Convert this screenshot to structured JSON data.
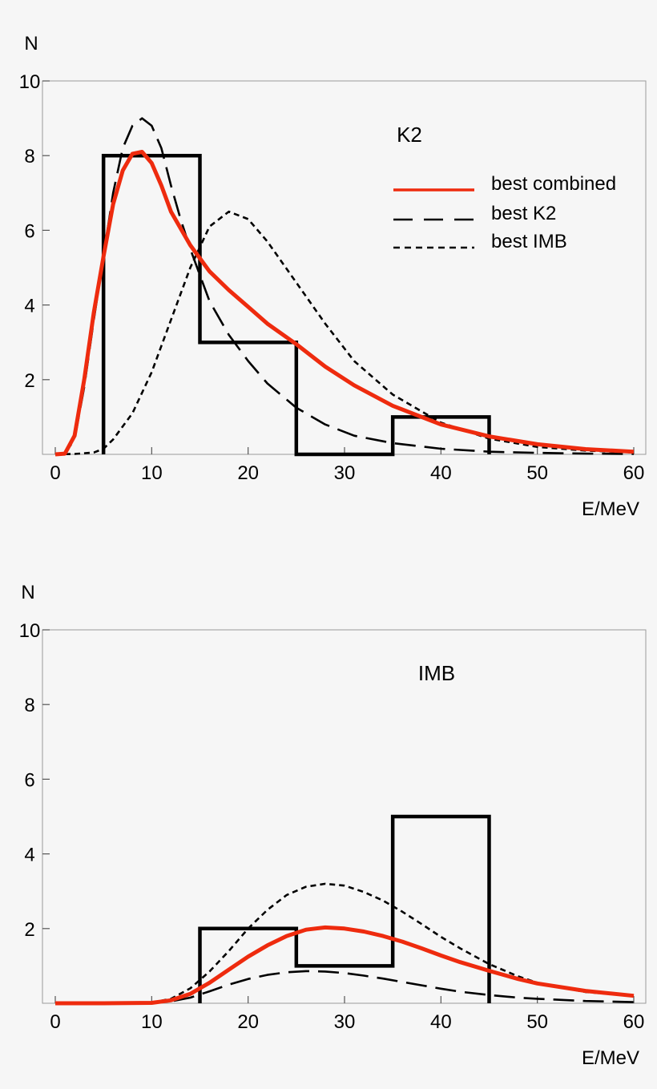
{
  "chart_data": [
    {
      "type": "line",
      "title": "K2",
      "ylabel": "N",
      "xlabel": "E/MeV",
      "xlim": [
        0,
        61
      ],
      "ylim": [
        0,
        10
      ],
      "xticks": [
        0,
        10,
        20,
        30,
        40,
        50,
        60
      ],
      "yticks": [
        2,
        4,
        6,
        8,
        10
      ],
      "histogram": {
        "name": "data",
        "bins": [
          [
            5,
            15,
            8
          ],
          [
            15,
            25,
            3
          ],
          [
            25,
            35,
            0
          ],
          [
            35,
            45,
            1
          ]
        ]
      },
      "series": [
        {
          "name": "best combined",
          "style": "solid-red",
          "x": [
            0,
            1,
            2,
            3,
            4,
            5,
            6,
            7,
            8,
            9,
            10,
            11,
            12,
            14,
            16,
            18,
            20,
            22,
            25,
            28,
            31,
            35,
            40,
            45,
            50,
            55,
            60
          ],
          "y": [
            0,
            0.02,
            0.5,
            2.0,
            3.8,
            5.3,
            6.7,
            7.6,
            8.05,
            8.1,
            7.8,
            7.2,
            6.5,
            5.6,
            4.9,
            4.4,
            3.95,
            3.5,
            2.95,
            2.35,
            1.85,
            1.3,
            0.8,
            0.48,
            0.27,
            0.14,
            0.07
          ]
        },
        {
          "name": "best K2",
          "style": "long-dash",
          "x": [
            0,
            1,
            2,
            3,
            4,
            5,
            6,
            7,
            8,
            9,
            10,
            11,
            12,
            13,
            14,
            15,
            16,
            18,
            20,
            22,
            25,
            28,
            31,
            35,
            40,
            45,
            50,
            55,
            60
          ],
          "y": [
            0,
            0.02,
            0.4,
            1.8,
            3.6,
            5.3,
            7.0,
            8.2,
            8.8,
            9.0,
            8.8,
            8.2,
            7.2,
            6.3,
            5.5,
            4.8,
            4.1,
            3.2,
            2.5,
            1.9,
            1.25,
            0.8,
            0.5,
            0.3,
            0.15,
            0.07,
            0.04,
            0.02,
            0.01
          ]
        },
        {
          "name": "best IMB",
          "style": "short-dash",
          "x": [
            0,
            2,
            4,
            5,
            6,
            8,
            10,
            12,
            14,
            16,
            18,
            20,
            22,
            25,
            28,
            31,
            35,
            40,
            45,
            50,
            55,
            60
          ],
          "y": [
            0,
            0.01,
            0.05,
            0.15,
            0.4,
            1.1,
            2.2,
            3.6,
            5.0,
            6.1,
            6.5,
            6.3,
            5.7,
            4.6,
            3.5,
            2.5,
            1.6,
            0.85,
            0.42,
            0.2,
            0.1,
            0.05
          ]
        }
      ],
      "legend": {
        "position": "top-right",
        "entries": [
          "best combined",
          "best K2",
          "best IMB"
        ]
      }
    },
    {
      "type": "line",
      "title": "IMB",
      "ylabel": "N",
      "xlabel": "E/MeV",
      "xlim": [
        0,
        61
      ],
      "ylim": [
        0,
        10
      ],
      "xticks": [
        0,
        10,
        20,
        30,
        40,
        50,
        60
      ],
      "yticks": [
        2,
        4,
        6,
        8,
        10
      ],
      "histogram": {
        "name": "data",
        "bins": [
          [
            15,
            25,
            2
          ],
          [
            25,
            35,
            1
          ],
          [
            35,
            45,
            5
          ]
        ]
      },
      "series": [
        {
          "name": "best combined",
          "style": "solid-red",
          "x": [
            0,
            5,
            10,
            12,
            14,
            16,
            18,
            20,
            22,
            24,
            26,
            28,
            30,
            32,
            34,
            36,
            38,
            40,
            42,
            45,
            48,
            50,
            55,
            60
          ],
          "y": [
            0,
            0,
            0.01,
            0.08,
            0.25,
            0.55,
            0.9,
            1.25,
            1.55,
            1.8,
            1.97,
            2.03,
            2.0,
            1.92,
            1.8,
            1.65,
            1.47,
            1.28,
            1.1,
            0.87,
            0.65,
            0.53,
            0.33,
            0.2
          ]
        },
        {
          "name": "best K2",
          "style": "long-dash",
          "x": [
            0,
            5,
            10,
            12,
            14,
            16,
            18,
            20,
            22,
            24,
            26,
            28,
            30,
            32,
            34,
            36,
            38,
            40,
            42,
            45,
            48,
            50,
            55,
            60
          ],
          "y": [
            0,
            0,
            0.01,
            0.05,
            0.15,
            0.32,
            0.5,
            0.65,
            0.76,
            0.83,
            0.86,
            0.85,
            0.81,
            0.74,
            0.66,
            0.57,
            0.48,
            0.39,
            0.31,
            0.22,
            0.15,
            0.12,
            0.06,
            0.03
          ]
        },
        {
          "name": "best IMB",
          "style": "short-dash",
          "x": [
            0,
            5,
            10,
            12,
            14,
            16,
            18,
            20,
            22,
            24,
            26,
            28,
            30,
            32,
            34,
            36,
            38,
            40,
            42,
            45,
            48,
            50,
            55,
            60
          ],
          "y": [
            0,
            0,
            0.02,
            0.12,
            0.4,
            0.85,
            1.4,
            2.0,
            2.5,
            2.9,
            3.12,
            3.2,
            3.15,
            2.98,
            2.75,
            2.45,
            2.12,
            1.78,
            1.47,
            1.05,
            0.72,
            0.55,
            0.3,
            0.2
          ]
        }
      ]
    }
  ]
}
